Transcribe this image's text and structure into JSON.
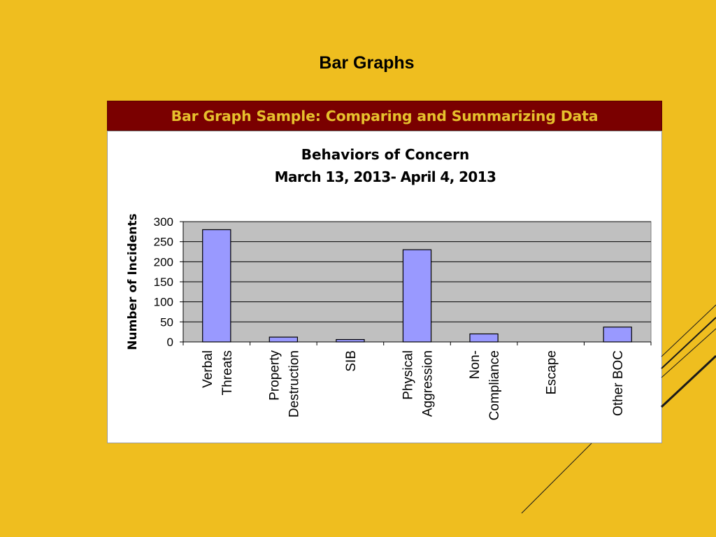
{
  "slide": {
    "title": "Bar Graphs",
    "banner": "Bar Graph Sample: Comparing and Summarizing Data"
  },
  "colors": {
    "background": "#efbe1f",
    "banner_background": "#7a0000",
    "banner_text": "#e6c12d",
    "plot_background": "#c0c0c0",
    "bar_fill": "#9999ff"
  },
  "chart_data": {
    "type": "bar",
    "title": "Behaviors of Concern",
    "subtitle": "March 13, 2013- April 4, 2013",
    "xlabel": "",
    "ylabel": "Number of Incidents",
    "ylim": [
      0,
      300
    ],
    "yticks": [
      0,
      50,
      100,
      150,
      200,
      250,
      300
    ],
    "grid": true,
    "legend": "none",
    "categories": [
      [
        "Verbal",
        "Threats"
      ],
      [
        "Property",
        "Destruction"
      ],
      [
        "SIB"
      ],
      [
        "Physical",
        "Aggression"
      ],
      [
        "Non-",
        "Compliance"
      ],
      [
        "Escape"
      ],
      [
        "Other BOC"
      ]
    ],
    "values": [
      280,
      12,
      6,
      230,
      20,
      0,
      37
    ]
  }
}
